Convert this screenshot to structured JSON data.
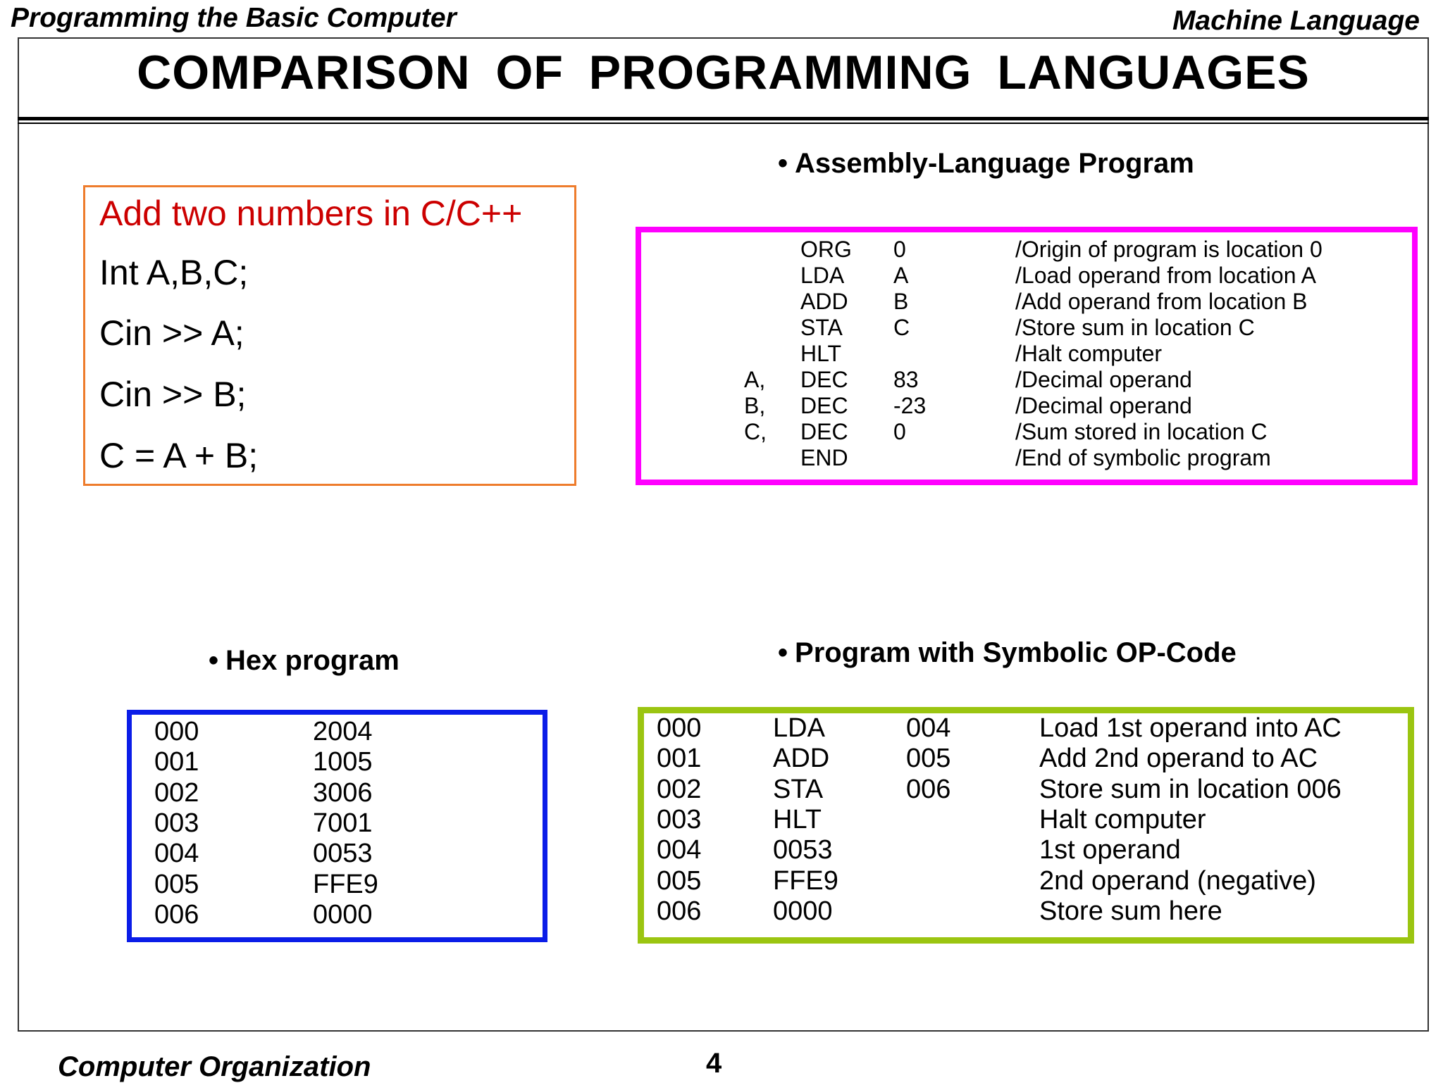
{
  "header": {
    "left": "Programming the Basic Computer",
    "right": "Machine Language",
    "title": "COMPARISON  OF  PROGRAMMING LANGUAGES"
  },
  "c_program": {
    "title": "Add two numbers in C/C++",
    "lines": [
      "Int A,B,C;",
      "Cin >> A;",
      "Cin >> B;",
      "C = A + B;"
    ]
  },
  "assembly": {
    "heading": "Assembly-Language Program",
    "rows": [
      {
        "label": "",
        "op": "ORG",
        "arg": "0",
        "comment": "/Origin of program is location 0"
      },
      {
        "label": "",
        "op": "LDA",
        "arg": "A",
        "comment": "/Load  operand from location A"
      },
      {
        "label": "",
        "op": "ADD",
        "arg": "B",
        "comment": "/Add  operand from location B"
      },
      {
        "label": "",
        "op": "STA",
        "arg": "C",
        "comment": "/Store sum in location C"
      },
      {
        "label": "",
        "op": "HLT",
        "arg": "",
        "comment": "/Halt computer"
      },
      {
        "label": "A,",
        "op": "DEC",
        "arg": "83",
        "comment": "/Decimal operand"
      },
      {
        "label": "B,",
        "op": "DEC",
        "arg": "-23",
        "comment": "/Decimal operand"
      },
      {
        "label": "C,",
        "op": "DEC",
        "arg": "0",
        "comment": "/Sum stored in location C"
      },
      {
        "label": "",
        "op": "END",
        "arg": "",
        "comment": "/End of symbolic program"
      }
    ]
  },
  "hex": {
    "heading": "Hex program",
    "rows": [
      {
        "addr": "000",
        "val": "2004"
      },
      {
        "addr": "001",
        "val": "1005"
      },
      {
        "addr": "002",
        "val": "3006"
      },
      {
        "addr": "003",
        "val": "7001"
      },
      {
        "addr": "004",
        "val": "0053"
      },
      {
        "addr": "005",
        "val": "FFE9"
      },
      {
        "addr": "006",
        "val": "0000"
      }
    ]
  },
  "symbolic": {
    "heading": "Program with Symbolic OP-Code",
    "rows": [
      {
        "addr": "000",
        "op": "LDA",
        "arg": "004",
        "desc": "Load 1st operand into AC"
      },
      {
        "addr": "001",
        "op": "ADD",
        "arg": "005",
        "desc": "Add 2nd operand to AC"
      },
      {
        "addr": "002",
        "op": "STA",
        "arg": "006",
        "desc": "Store sum in location 006"
      },
      {
        "addr": "003",
        "op": "HLT",
        "arg": "",
        "desc": "Halt computer"
      },
      {
        "addr": "004",
        "op": "0053",
        "arg": "",
        "desc": "1st operand"
      },
      {
        "addr": "005",
        "op": "FFE9",
        "arg": "",
        "desc": "2nd operand (negative)"
      },
      {
        "addr": "006",
        "op": "0000",
        "arg": "",
        "desc": "Store sum here"
      }
    ]
  },
  "footer": {
    "left": "Computer Organization",
    "page": "4"
  },
  "colors": {
    "c_box_border": "#ee7c2c",
    "c_title": "#cc0000",
    "assembly_box_border": "#ff00ff",
    "hex_box_border": "#0b1de8",
    "symbolic_box_border": "#9bc511"
  }
}
